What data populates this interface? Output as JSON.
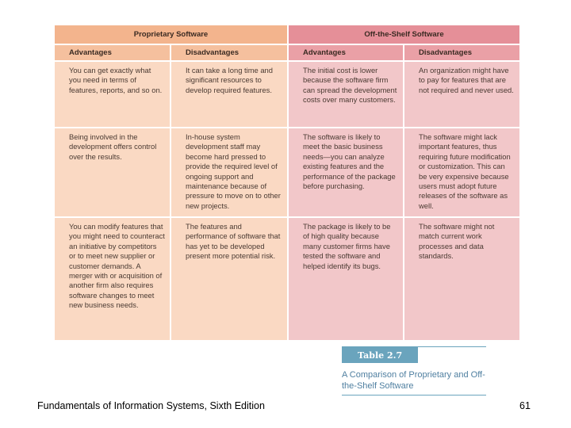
{
  "table": {
    "group_proprietary": "Proprietary Software",
    "group_ots": "Off-the-Shelf Software",
    "col_headers": [
      "Advantages",
      "Disadvantages",
      "Advantages",
      "Disadvantages"
    ],
    "rows": [
      [
        "You can get exactly what you need in terms of features, reports, and so on.",
        "It can take a long time and significant resources to develop required features.",
        "The initial cost is lower because the software firm can spread the development costs over many customers.",
        "An organization might have to pay for features that are not required and never used."
      ],
      [
        "Being involved in the development offers control over the results.",
        "In-house system development staff may become hard pressed to provide the required level of ongoing support and maintenance because of pressure to move on to other new projects.",
        "The software is likely to meet the basic business needs—you can analyze existing features and the performance of the package before purchasing.",
        "The software might lack important features, thus requiring future modification or customization. This can be very expensive because users must adopt future releases of the software as well."
      ],
      [
        "You can modify features that you might need to counteract an initiative by competitors or to meet new supplier or customer demands. A merger with or acquisition of another firm also requires software changes to meet new business needs.",
        "The features and performance of software that has yet to be developed present more potential risk.",
        "The package is likely to be of high quality because many customer firms have tested the software and helped identify its bugs.",
        "The software might not match current work processes and data standards."
      ]
    ]
  },
  "caption": {
    "label": "Table 2.7",
    "title": "A Comparison of Proprietary and Off-the-Shelf Software"
  },
  "footer": {
    "book_title": "Fundamentals of Information Systems, Sixth Edition",
    "page_number": "61"
  }
}
